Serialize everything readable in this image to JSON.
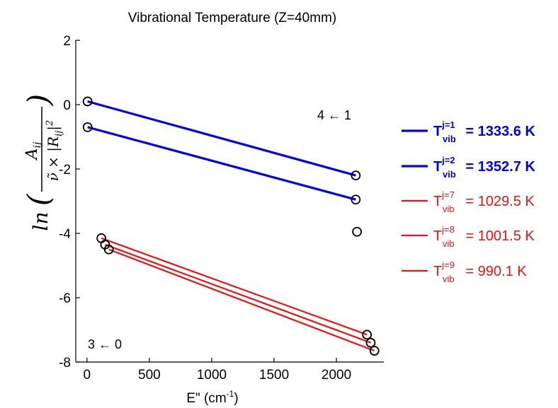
{
  "chart_data": {
    "type": "scatter",
    "title": "Vibrational Temperature (Z=40mm)",
    "xlabel": "E\" (cm",
    "xlabel_sup": "-1",
    "xlabel_close": ")",
    "ylabel_ln": "ln",
    "ylabel_num": "A",
    "ylabel_num_sub": "ij",
    "ylabel_den": "ν̃ × |R",
    "ylabel_den_sub": "ij",
    "ylabel_den_sup": "2",
    "xlim": [
      -90,
      2380
    ],
    "ylim": [
      -8,
      2
    ],
    "xticks": [
      0,
      500,
      1000,
      1500,
      2000
    ],
    "yticks": [
      2,
      0,
      -2,
      -4,
      -6,
      -8
    ],
    "grid": false,
    "legend_placement": "right",
    "annotations": [
      {
        "text": "4 ← 1",
        "x": 2160,
        "y": -0.4
      },
      {
        "text": "3 ← 0",
        "x": 90,
        "y": -7.4
      }
    ],
    "markers": [
      {
        "x": 5,
        "y": 0.1
      },
      {
        "x": 5,
        "y": -0.7
      },
      {
        "x": 2155,
        "y": -2.2
      },
      {
        "x": 2155,
        "y": -2.95
      },
      {
        "x": 2165,
        "y": -3.95
      },
      {
        "x": 115,
        "y": -4.15
      },
      {
        "x": 145,
        "y": -4.35
      },
      {
        "x": 175,
        "y": -4.5
      },
      {
        "x": 2245,
        "y": -7.15
      },
      {
        "x": 2275,
        "y": -7.4
      },
      {
        "x": 2305,
        "y": -7.65
      }
    ],
    "series": [
      {
        "label_T": "T",
        "label_sup": "j=1",
        "label_sub": "vib",
        "label_value": " = 1333.6 K",
        "color": "#0000ee",
        "bold": true,
        "x": [
          5,
          2155
        ],
        "y": [
          0.1,
          -2.2
        ]
      },
      {
        "label_T": "T",
        "label_sup": "j=2",
        "label_sub": "vib",
        "label_value": " = 1352.7 K",
        "color": "#0000ee",
        "bold": true,
        "x": [
          5,
          2155
        ],
        "y": [
          -0.7,
          -2.95
        ]
      },
      {
        "label_T": "T",
        "label_sup": "j=7",
        "label_sub": "vib",
        "label_value": " = 1029.5 K",
        "color": "#ee1111",
        "bold": false,
        "x": [
          175,
          2305
        ],
        "y": [
          -4.5,
          -7.65
        ]
      },
      {
        "label_T": "T",
        "label_sup": "j=8",
        "label_sub": "vib",
        "label_value": " = 1001.5 K",
        "color": "#ee1111",
        "bold": false,
        "x": [
          145,
          2275
        ],
        "y": [
          -4.35,
          -7.4
        ]
      },
      {
        "label_T": "T",
        "label_sup": "j=9",
        "label_sub": "vib",
        "label_value": " = 990.1 K",
        "color": "#ee1111",
        "bold": false,
        "x": [
          115,
          2245
        ],
        "y": [
          -4.15,
          -7.15
        ]
      }
    ]
  }
}
